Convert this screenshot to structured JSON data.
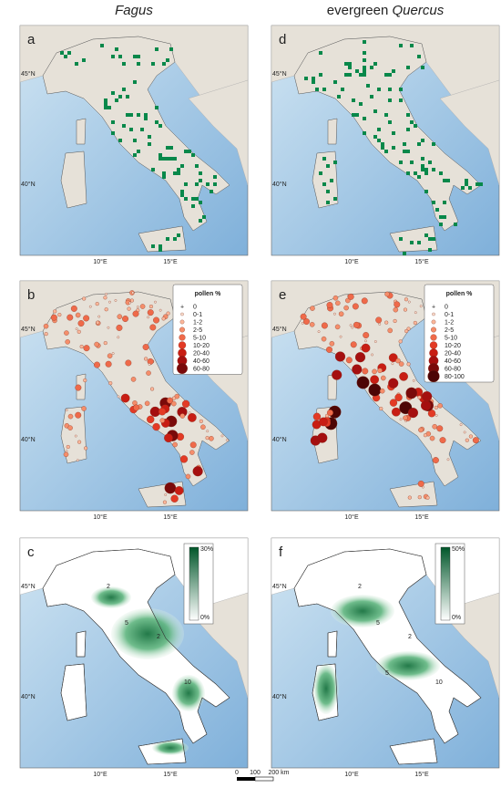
{
  "columns": [
    {
      "title": "Fagus"
    },
    {
      "title_prefix": "evergreen",
      "title_italic": "Quercus"
    }
  ],
  "panels": [
    {
      "letter": "a",
      "lat_labels": [
        "45°N",
        "40°N"
      ],
      "lon_labels": [
        "10°E",
        "15°E"
      ]
    },
    {
      "letter": "d",
      "lat_labels": [
        "45°N",
        "40°N"
      ],
      "lon_labels": [
        "10°E",
        "15°E"
      ]
    },
    {
      "letter": "b",
      "lat_labels": [
        "45°N",
        "40°N"
      ],
      "lon_labels": [
        "10°E",
        "15°E"
      ],
      "legend": {
        "title": "pollen %",
        "classes": [
          "0",
          "0-1",
          "1-2",
          "2-5",
          "5-10",
          "10-20",
          "20-40",
          "40-60",
          "60-80"
        ]
      }
    },
    {
      "letter": "e",
      "lat_labels": [
        "45°N",
        "40°N"
      ],
      "lon_labels": [
        "10°E",
        "15°E"
      ],
      "legend": {
        "title": "pollen %",
        "classes": [
          "0",
          "0-1",
          "1-2",
          "2-5",
          "5-10",
          "10-20",
          "20-40",
          "40-60",
          "60-80",
          "80-100"
        ]
      }
    },
    {
      "letter": "c",
      "lat_labels": [
        "45°N",
        "40°N"
      ],
      "lon_labels": [
        "10°E",
        "15°E"
      ],
      "colorbar": {
        "top": "30%",
        "bottom": "0%"
      },
      "contour_labels": [
        "2",
        "5",
        "2",
        "10"
      ]
    },
    {
      "letter": "f",
      "lat_labels": [
        "45°N",
        "40°N"
      ],
      "lon_labels": [
        "10°E",
        "15°E"
      ],
      "colorbar": {
        "top": "50%",
        "bottom": "0%"
      },
      "contour_labels": [
        "2",
        "5",
        "2",
        "10",
        "5"
      ]
    }
  ],
  "scale_bar": {
    "ticks": [
      "0",
      "100",
      "200 km"
    ]
  }
}
